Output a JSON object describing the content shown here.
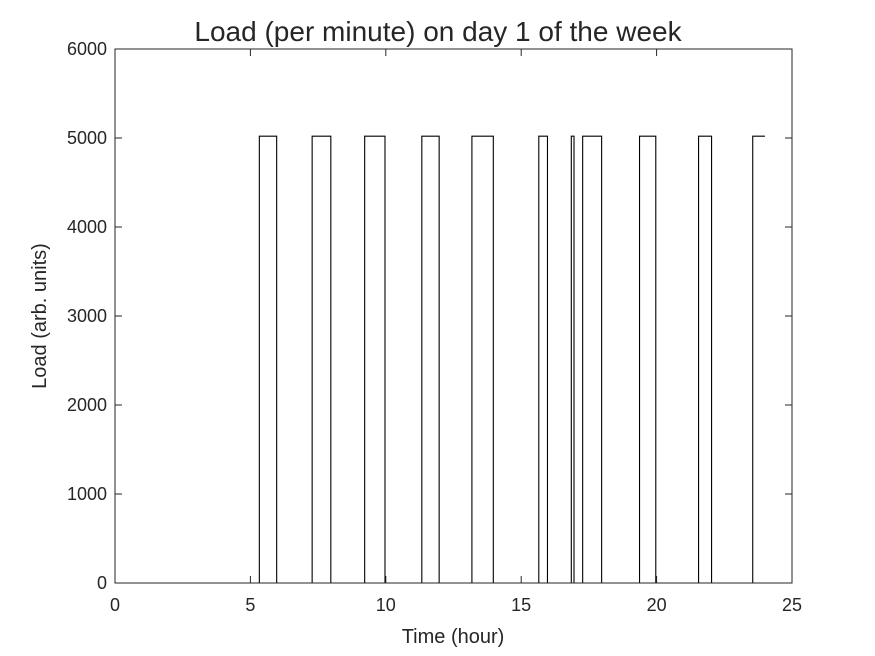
{
  "chart_data": {
    "type": "line",
    "title": "Load (per minute) on day 1 of the week",
    "xlabel": "Time (hour)",
    "ylabel": "Load (arb. units)",
    "xlim": [
      0,
      25
    ],
    "ylim": [
      0,
      6000
    ],
    "xticks": [
      0,
      5,
      10,
      15,
      20,
      25
    ],
    "yticks": [
      0,
      1000,
      2000,
      3000,
      4000,
      5000,
      6000
    ],
    "grid": false,
    "legend": "none",
    "line_color": "#000000",
    "series": [
      {
        "x": [
          0,
          5.33,
          5.33,
          5.97,
          5.97,
          7.28,
          7.28,
          7.97,
          7.97,
          9.22,
          9.22,
          9.97,
          9.97,
          11.33,
          11.33,
          11.97,
          11.97,
          13.18,
          13.18,
          13.97,
          13.97,
          15.65,
          15.65,
          15.97,
          15.97,
          16.85,
          16.85,
          16.95,
          16.95,
          17.27,
          17.27,
          17.97,
          17.97,
          19.37,
          19.37,
          19.97,
          19.97,
          21.55,
          21.55,
          22.03,
          22.03,
          23.55,
          23.55,
          24.0
        ],
        "y": [
          0,
          0,
          5020,
          5020,
          0,
          0,
          5020,
          5020,
          0,
          0,
          5020,
          5020,
          0,
          0,
          5020,
          5020,
          0,
          0,
          5020,
          5020,
          0,
          0,
          5020,
          5020,
          0,
          0,
          5020,
          5020,
          0,
          0,
          5020,
          5020,
          0,
          0,
          5020,
          5020,
          0,
          0,
          5020,
          5020,
          0,
          0,
          5020,
          5020
        ]
      }
    ]
  }
}
